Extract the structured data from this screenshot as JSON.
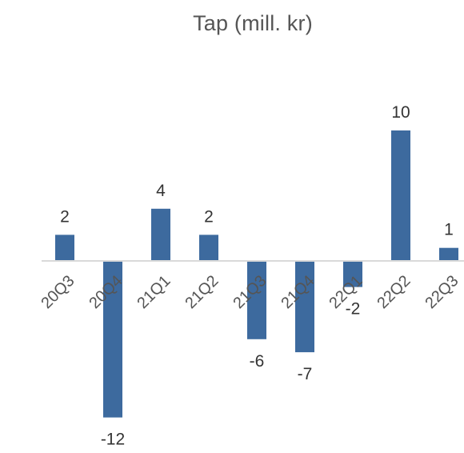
{
  "chart_data": {
    "type": "bar",
    "title": "Tap (mill. kr)",
    "categories": [
      "20Q3",
      "20Q4",
      "21Q1",
      "21Q2",
      "21Q3",
      "21Q4",
      "22Q1",
      "22Q2",
      "22Q3"
    ],
    "values": [
      2,
      -12,
      4,
      2,
      -6,
      -7,
      -2,
      10,
      1
    ],
    "data_labels": [
      "2",
      "-12",
      "4",
      "2",
      "-6",
      "-7",
      "-2",
      "10",
      "1"
    ],
    "xlabel": "",
    "ylabel": "",
    "ylim": [
      -12,
      10
    ],
    "grid": false,
    "legend": "none",
    "bar_color": "#3d6a9e",
    "axis_color": "#d9d9d9"
  }
}
